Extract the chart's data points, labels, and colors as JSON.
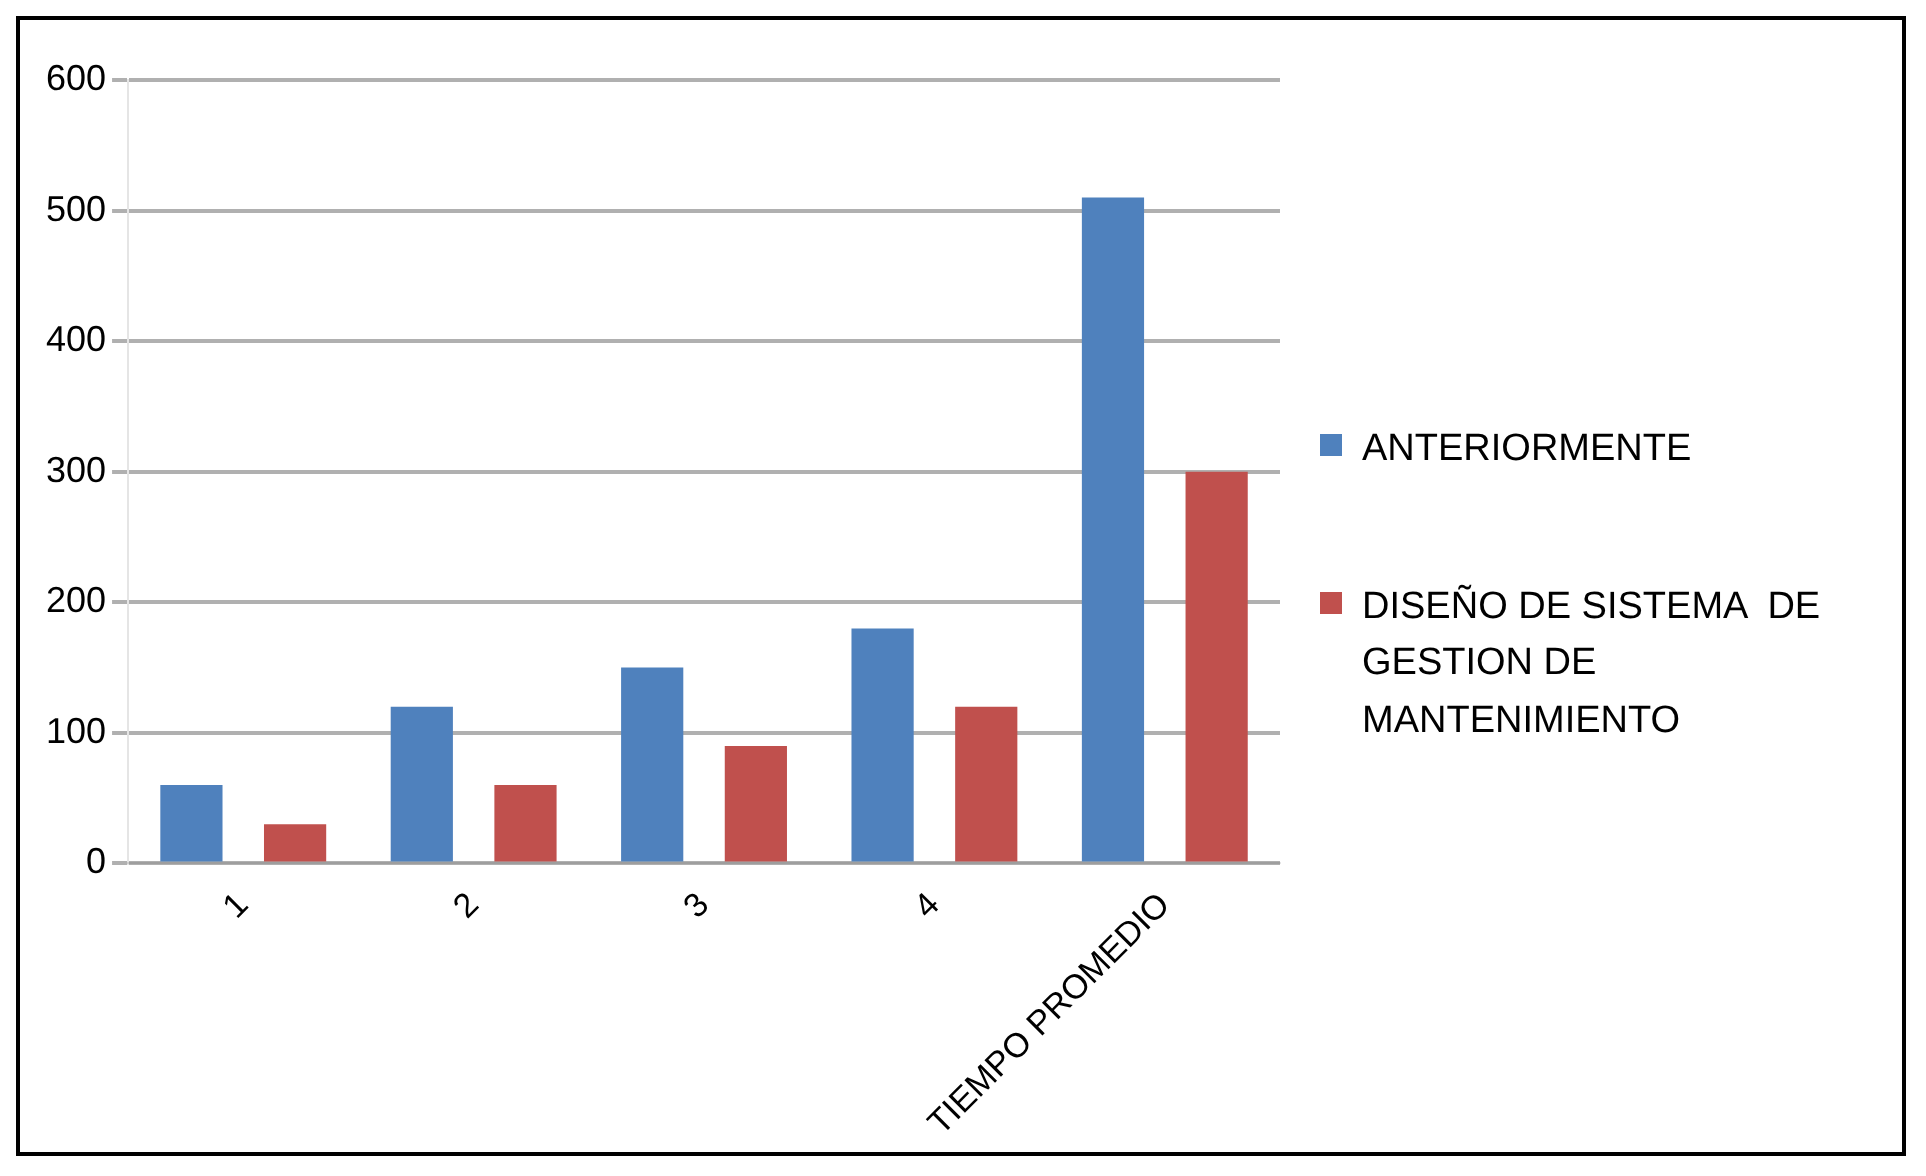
{
  "chart_data": {
    "type": "bar",
    "categories": [
      "1",
      "2",
      "3",
      "4",
      "TIEMPO PROMEDIO"
    ],
    "series": [
      {
        "name": "ANTERIORMENTE",
        "color": "#4f81bd",
        "values": [
          60,
          120,
          150,
          180,
          510
        ]
      },
      {
        "name": "DISEÑO DE SISTEMA  DE GESTION DE MANTENIMIENTO",
        "color": "#c0504d",
        "values": [
          30,
          60,
          90,
          120,
          300
        ]
      }
    ],
    "ylim": [
      0,
      600
    ],
    "yticks": [
      0,
      100,
      200,
      300,
      400,
      500,
      600
    ],
    "grid": "y",
    "legend": "right"
  }
}
